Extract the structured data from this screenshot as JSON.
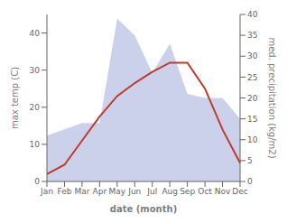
{
  "chart_data": {
    "type": "line",
    "xlabel": "date (month)",
    "ylabel": "max temp (C)",
    "y2label": "med. precipitation (kg/m2)",
    "categories": [
      "Jan",
      "Feb",
      "Mar",
      "Apr",
      "May",
      "Jun",
      "Jul",
      "Aug",
      "Sep",
      "Oct",
      "Nov",
      "Dec"
    ],
    "series": [
      {
        "type": "area",
        "axis": "y2",
        "color": "#c5cce8",
        "values": [
          11.0,
          12.5,
          14.0,
          14.0,
          39.0,
          35.0,
          26.0,
          33.0,
          21.0,
          20.0,
          20.0,
          15.0
        ]
      },
      {
        "type": "line",
        "color": "#c0392b",
        "values": [
          2.0,
          4.5,
          11.0,
          17.5,
          23.0,
          26.5,
          29.5,
          32.0,
          32.0,
          25.0,
          14.0,
          5.0
        ]
      }
    ],
    "ylim": [
      0,
      45
    ],
    "yticks": [
      0,
      10,
      20,
      30,
      40
    ],
    "y2lim": [
      0,
      40
    ],
    "y2ticks": [
      0,
      5,
      10,
      15,
      20,
      25,
      30,
      35,
      40
    ],
    "grid": false
  }
}
